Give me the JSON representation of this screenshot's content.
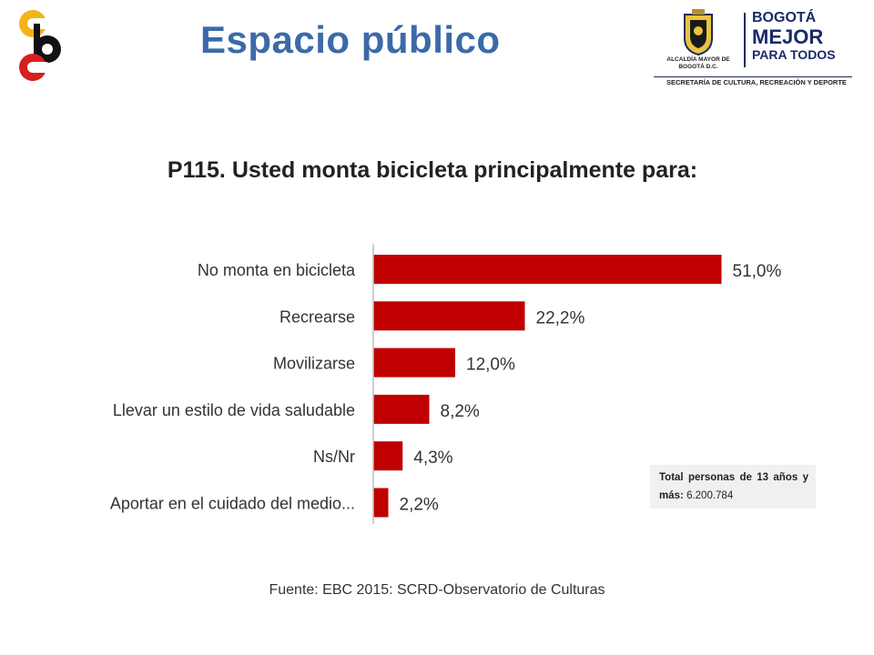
{
  "header": {
    "title": "Espacio público"
  },
  "logos": {
    "alcaldia_text": "ALCALDÍA MAYOR DE BOGOTÁ D.C.",
    "bogota_line1": "BOGOTÁ",
    "bogota_line2": "MEJOR",
    "bogota_line3": "PARA TODOS",
    "department": "SECRETARÍA DE CULTURA, RECREACIÓN Y DEPORTE"
  },
  "chart_data": {
    "type": "bar",
    "orientation": "horizontal",
    "title": "P115. Usted monta bicicleta principalmente para:",
    "categories": [
      "No monta en bicicleta",
      "Recrearse",
      "Movilizarse",
      "Llevar un estilo de vida saludable",
      "Ns/Nr",
      "Aportar en el cuidado del medio..."
    ],
    "values": [
      51.0,
      22.2,
      12.0,
      8.2,
      4.3,
      2.2
    ],
    "value_labels": [
      "51,0%",
      "22,2%",
      "12,0%",
      "8,2%",
      "4,3%",
      "2,2%"
    ],
    "bar_color": "#c00000",
    "xlim": [
      0,
      100
    ],
    "grid": false
  },
  "note": {
    "label": "Total personas de 13 años y más:",
    "value": "6.200.784"
  },
  "footer": {
    "source": "Fuente: EBC 2015: SCRD-Observatorio de Culturas"
  }
}
